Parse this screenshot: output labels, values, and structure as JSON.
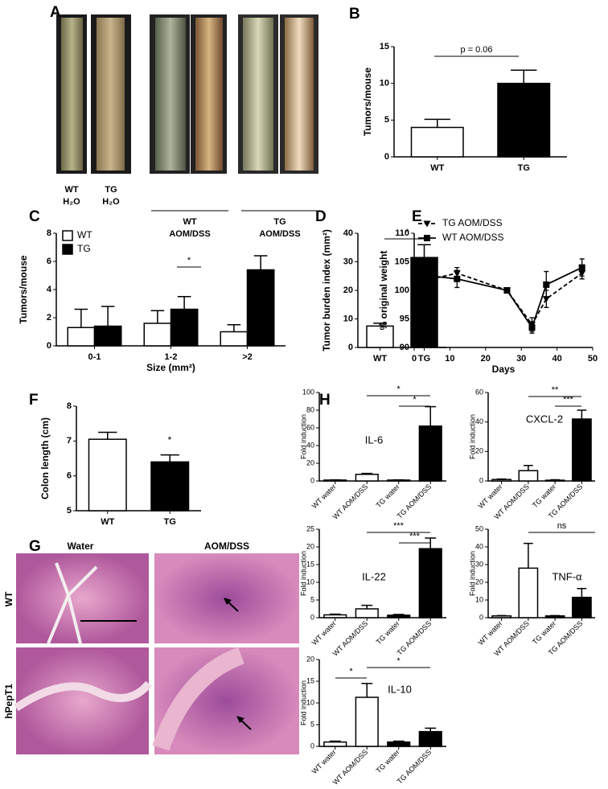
{
  "chart_data": [
    {
      "type": "bar",
      "categories": [
        "WT",
        "TG"
      ],
      "values": [
        4,
        10
      ],
      "errors": [
        1.1,
        1.8
      ],
      "colors": [
        "#ffffff",
        "#000000"
      ],
      "ylim": [
        0,
        15
      ],
      "yticks": [
        0,
        5,
        10,
        15
      ],
      "ylabel": "Tumors/mouse",
      "annotations": [
        "p = 0.06"
      ]
    },
    {
      "type": "bar",
      "categories": [
        "0-1",
        "1-2",
        ">2"
      ],
      "series": [
        {
          "name": "WT",
          "color": "#ffffff",
          "values": [
            1.3,
            1.6,
            1.0
          ],
          "errors": [
            1.3,
            0.9,
            0.5
          ]
        },
        {
          "name": "TG",
          "color": "#000000",
          "values": [
            1.4,
            2.6,
            5.4
          ],
          "errors": [
            1.4,
            0.9,
            1.0
          ]
        }
      ],
      "ylim": [
        0,
        8
      ],
      "yticks": [
        0,
        2,
        4,
        6,
        8
      ],
      "ylabel": "Tumors/mouse",
      "xlabel": "Size (mm²)",
      "legend": "top-left",
      "annotations": [
        "*"
      ]
    },
    {
      "type": "bar",
      "categories": [
        "WT",
        "TG"
      ],
      "values": [
        7.5,
        31.5
      ],
      "errors": [
        1,
        4.5
      ],
      "colors": [
        "#ffffff",
        "#000000"
      ],
      "ylim": [
        0,
        40
      ],
      "yticks": [
        0,
        10,
        20,
        30,
        40
      ],
      "ylabel": "Tumor burden index (mm²)",
      "annotations": [
        "*"
      ]
    },
    {
      "type": "line",
      "series": [
        {
          "name": "TG AOM/DSS",
          "color": "#000000",
          "line_style": "dashed",
          "marker": "triangle",
          "x": [
            0,
            5,
            12,
            26,
            33,
            37,
            47
          ],
          "values": [
            100,
            102,
            103,
            100,
            94,
            98.5,
            103
          ],
          "errors": [
            0.3,
            1,
            1,
            0.3,
            1.2,
            1.5,
            1
          ]
        },
        {
          "name": "WT AOM/DSS",
          "color": "#000000",
          "line_style": "solid",
          "marker": "square",
          "x": [
            0,
            5,
            12,
            26,
            33,
            37,
            47
          ],
          "values": [
            100,
            102.5,
            102,
            100,
            93.5,
            101,
            104
          ],
          "errors": [
            0.3,
            1.2,
            1.5,
            0.3,
            1,
            2.3,
            1.5
          ]
        }
      ],
      "xlim": [
        0,
        50
      ],
      "xticks": [
        0,
        10,
        20,
        30,
        40,
        50
      ],
      "ylim": [
        90,
        110
      ],
      "yticks": [
        90,
        95,
        100,
        105,
        110
      ],
      "xlabel": "Days",
      "ylabel": "% original weight",
      "legend": "top-left"
    },
    {
      "type": "bar",
      "categories": [
        "WT",
        "TG"
      ],
      "values": [
        7.05,
        6.4
      ],
      "errors": [
        0.2,
        0.2
      ],
      "colors": [
        "#ffffff",
        "#000000"
      ],
      "ylim": [
        5,
        8
      ],
      "yticks": [
        5,
        6,
        7,
        8
      ],
      "ylabel": "Colon length (cm)",
      "annotations": [
        "*"
      ]
    },
    {
      "type": "bar",
      "title": "IL-6",
      "categories": [
        "WT water",
        "WT AOM/DSS",
        "TG water",
        "TG AOM/DSS"
      ],
      "values": [
        1,
        7.5,
        1,
        62
      ],
      "errors": [
        0.3,
        1,
        0.3,
        22
      ],
      "colors": [
        "#ffffff",
        "#ffffff",
        "#000000",
        "#000000"
      ],
      "ylim": [
        0,
        100
      ],
      "yticks": [
        0,
        20,
        40,
        60,
        80,
        100
      ],
      "ylabel": "Fold induction",
      "annotations": [
        "*",
        "*"
      ]
    },
    {
      "type": "bar",
      "title": "CXCL-2",
      "categories": [
        "WT water",
        "WT AOM/DSS",
        "TG water",
        "TG AOM/DSS"
      ],
      "values": [
        1,
        7,
        0.5,
        42
      ],
      "errors": [
        0.3,
        3.5,
        0.3,
        6
      ],
      "colors": [
        "#ffffff",
        "#ffffff",
        "#000000",
        "#000000"
      ],
      "ylim": [
        0,
        60
      ],
      "yticks": [
        0,
        20,
        40,
        60
      ],
      "ylabel": "Fold induction",
      "annotations": [
        "**",
        "***"
      ]
    },
    {
      "type": "bar",
      "title": "IL-22",
      "categories": [
        "WT water",
        "WT AOM/DSS",
        "TG water",
        "TG AOM/DSS"
      ],
      "values": [
        0.8,
        2.5,
        0.7,
        19.5
      ],
      "errors": [
        0.2,
        1,
        0.2,
        3
      ],
      "colors": [
        "#ffffff",
        "#ffffff",
        "#000000",
        "#000000"
      ],
      "ylim": [
        0,
        25
      ],
      "yticks": [
        0,
        5,
        10,
        15,
        20,
        25
      ],
      "ylabel": "Fold induction",
      "annotations": [
        "***",
        "***"
      ]
    },
    {
      "type": "bar",
      "title": "TNF-α",
      "categories": [
        "WT water",
        "WT AOM/DSS",
        "TG water",
        "TG AOM/DSS"
      ],
      "values": [
        1,
        28,
        1,
        11.5
      ],
      "errors": [
        0.2,
        14,
        0.2,
        5
      ],
      "colors": [
        "#ffffff",
        "#ffffff",
        "#000000",
        "#000000"
      ],
      "ylim": [
        0,
        50
      ],
      "yticks": [
        0,
        10,
        20,
        30,
        40,
        50
      ],
      "ylabel": "Fold induction",
      "annotations": [
        "ns"
      ]
    },
    {
      "type": "bar",
      "title": "IL-10",
      "categories": [
        "WT water",
        "WT AOM/DSS",
        "TG water",
        "TG AOM/DSS"
      ],
      "values": [
        1,
        11.3,
        1,
        3.4
      ],
      "errors": [
        0.2,
        3.2,
        0.2,
        0.8
      ],
      "colors": [
        "#ffffff",
        "#ffffff",
        "#000000",
        "#000000"
      ],
      "ylim": [
        0,
        20
      ],
      "yticks": [
        0,
        5,
        10,
        15,
        20
      ],
      "ylabel": "Fold induction",
      "annotations": [
        "*",
        "*"
      ]
    }
  ],
  "panel_letters": [
    "A",
    "B",
    "C",
    "D",
    "E",
    "F",
    "G",
    "H"
  ],
  "panel_A": {
    "groups": [
      [
        "WT",
        "H₂O"
      ],
      [
        "TG",
        "H₂O"
      ],
      [
        "WT",
        "AOM/DSS"
      ],
      [
        "TG",
        "AOM/DSS"
      ]
    ]
  },
  "panel_G": {
    "columns": [
      "Water",
      "AOM/DSS"
    ],
    "rows": [
      "WT",
      "hPepT1"
    ]
  }
}
